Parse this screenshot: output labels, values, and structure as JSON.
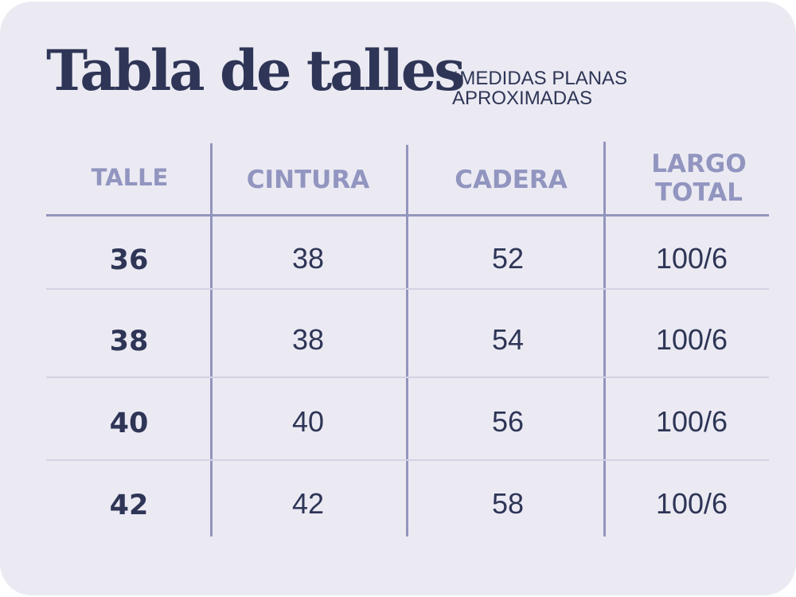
{
  "title": "Tabla de talles",
  "note": {
    "line1": "*MEDIDAS PLANAS",
    "line2": "APROXIMADAS"
  },
  "table": {
    "headers": {
      "talle": "TALLE",
      "cintura": "CINTURA",
      "cadera": "CADERA",
      "largo_line1": "LARGO",
      "largo_line2": "TOTAL"
    },
    "rows": [
      {
        "talle": "36",
        "cintura": "38",
        "cadera": "52",
        "largo": "100/6"
      },
      {
        "talle": "38",
        "cintura": "38",
        "cadera": "54",
        "largo": "100/6"
      },
      {
        "talle": "40",
        "cintura": "40",
        "cadera": "56",
        "largo": "100/6"
      },
      {
        "talle": "42",
        "cintura": "42",
        "cadera": "58",
        "largo": "100/6"
      }
    ]
  },
  "colors": {
    "background": "#ebeaf3",
    "text_dark": "#2e3556",
    "header_text": "#9195bf",
    "grid_line": "#9295bc",
    "row_divider": "#d3d3e4"
  }
}
